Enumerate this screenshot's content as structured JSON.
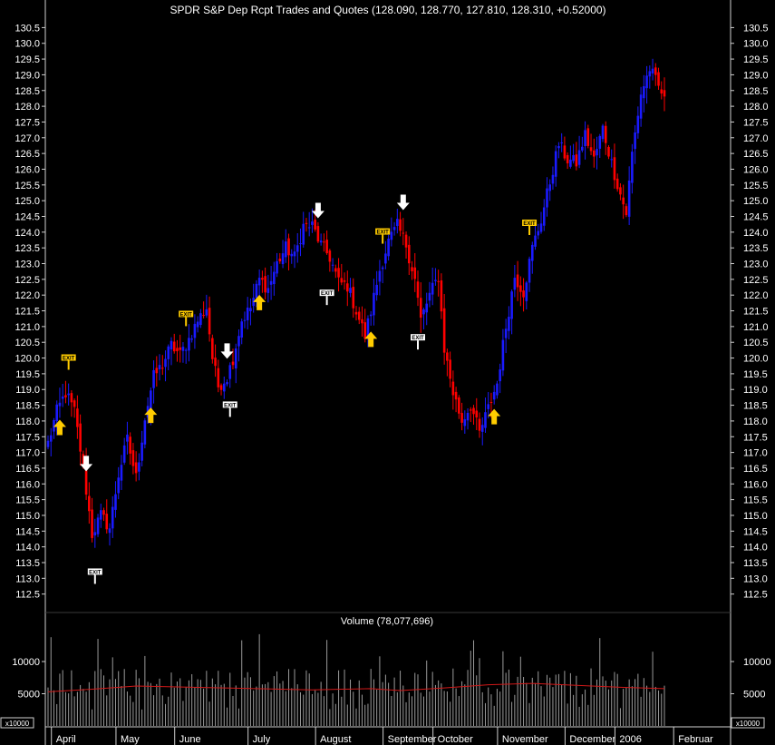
{
  "chart_data": {
    "type": "candlestick",
    "title": "SPDR  S&P Dep Rcpt Trades and Quotes (128.090, 128.770, 127.810, 128.310, +0.52000)",
    "price_axis": {
      "ylim": [
        112.0,
        130.8
      ],
      "ticks": [
        "130.5",
        "130.0",
        "129.5",
        "129.0",
        "128.5",
        "128.0",
        "127.5",
        "127.0",
        "126.5",
        "126.0",
        "125.5",
        "125.0",
        "124.5",
        "124.0",
        "123.5",
        "123.0",
        "122.5",
        "122.0",
        "121.5",
        "121.0",
        "120.5",
        "120.0",
        "119.5",
        "119.0",
        "118.5",
        "118.0",
        "117.5",
        "117.0",
        "116.5",
        "116.0",
        "115.5",
        "115.0",
        "114.5",
        "114.0",
        "113.5",
        "113.0",
        "112.5"
      ]
    },
    "time_axis": {
      "labels": [
        "April",
        "May",
        "June",
        "July",
        "August",
        "September",
        "October",
        "November",
        "December",
        "2006",
        "Februar"
      ],
      "label_day_index": [
        3,
        25,
        45,
        70,
        93,
        116,
        133,
        155,
        178,
        195,
        215
      ]
    },
    "colors": {
      "up": "#1a1aff",
      "down": "#ff0000",
      "volume_bar": "#9a9a9a",
      "volume_ma": "#d01818",
      "long_signal": "#ffcc00",
      "short_signal": "#ffffff",
      "grid": "#4a4a4a"
    },
    "close_anchors": [
      {
        "day": 0,
        "close": 117.3
      },
      {
        "day": 3,
        "close": 118.3
      },
      {
        "day": 6,
        "close": 118.9
      },
      {
        "day": 9,
        "close": 118.3
      },
      {
        "day": 12,
        "close": 116.5
      },
      {
        "day": 15,
        "close": 114.4
      },
      {
        "day": 18,
        "close": 115.0
      },
      {
        "day": 21,
        "close": 114.6
      },
      {
        "day": 24,
        "close": 116.3
      },
      {
        "day": 27,
        "close": 117.4
      },
      {
        "day": 30,
        "close": 116.2
      },
      {
        "day": 33,
        "close": 118.1
      },
      {
        "day": 36,
        "close": 119.4
      },
      {
        "day": 39,
        "close": 119.8
      },
      {
        "day": 42,
        "close": 120.4
      },
      {
        "day": 45,
        "close": 120.1
      },
      {
        "day": 48,
        "close": 120.6
      },
      {
        "day": 51,
        "close": 121.2
      },
      {
        "day": 54,
        "close": 121.6
      },
      {
        "day": 56,
        "close": 120.0
      },
      {
        "day": 58,
        "close": 119.1
      },
      {
        "day": 61,
        "close": 119.4
      },
      {
        "day": 63,
        "close": 120.0
      },
      {
        "day": 66,
        "close": 121.2
      },
      {
        "day": 69,
        "close": 121.6
      },
      {
        "day": 72,
        "close": 122.5
      },
      {
        "day": 75,
        "close": 122.2
      },
      {
        "day": 78,
        "close": 123.0
      },
      {
        "day": 81,
        "close": 123.5
      },
      {
        "day": 84,
        "close": 123.2
      },
      {
        "day": 87,
        "close": 124.2
      },
      {
        "day": 90,
        "close": 124.2
      },
      {
        "day": 93,
        "close": 123.6
      },
      {
        "day": 96,
        "close": 123.2
      },
      {
        "day": 99,
        "close": 122.4
      },
      {
        "day": 102,
        "close": 122.3
      },
      {
        "day": 105,
        "close": 121.5
      },
      {
        "day": 108,
        "close": 120.7
      },
      {
        "day": 110,
        "close": 121.5
      },
      {
        "day": 113,
        "close": 122.8
      },
      {
        "day": 116,
        "close": 123.7
      },
      {
        "day": 119,
        "close": 124.2
      },
      {
        "day": 122,
        "close": 123.6
      },
      {
        "day": 125,
        "close": 122.5
      },
      {
        "day": 127,
        "close": 121.2
      },
      {
        "day": 130,
        "close": 122.0
      },
      {
        "day": 133,
        "close": 122.6
      },
      {
        "day": 135,
        "close": 120.3
      },
      {
        "day": 138,
        "close": 118.9
      },
      {
        "day": 141,
        "close": 118.0
      },
      {
        "day": 144,
        "close": 118.5
      },
      {
        "day": 147,
        "close": 117.6
      },
      {
        "day": 150,
        "close": 118.4
      },
      {
        "day": 153,
        "close": 119.2
      },
      {
        "day": 156,
        "close": 121.0
      },
      {
        "day": 159,
        "close": 122.6
      },
      {
        "day": 162,
        "close": 122.1
      },
      {
        "day": 165,
        "close": 123.5
      },
      {
        "day": 168,
        "close": 124.4
      },
      {
        "day": 171,
        "close": 125.6
      },
      {
        "day": 174,
        "close": 126.8
      },
      {
        "day": 177,
        "close": 126.3
      },
      {
        "day": 180,
        "close": 126.2
      },
      {
        "day": 183,
        "close": 127.1
      },
      {
        "day": 186,
        "close": 126.3
      },
      {
        "day": 189,
        "close": 127.3
      },
      {
        "day": 192,
        "close": 126.2
      },
      {
        "day": 195,
        "close": 125.2
      },
      {
        "day": 197,
        "close": 124.6
      },
      {
        "day": 199,
        "close": 126.5
      },
      {
        "day": 202,
        "close": 128.4
      },
      {
        "day": 205,
        "close": 129.2
      },
      {
        "day": 208,
        "close": 128.6
      },
      {
        "day": 210,
        "close": 128.3
      }
    ],
    "signals": [
      {
        "day": 4,
        "kind": "long"
      },
      {
        "day": 7,
        "kind": "exit-long"
      },
      {
        "day": 13,
        "kind": "short"
      },
      {
        "day": 16,
        "kind": "exit-short"
      },
      {
        "day": 35,
        "kind": "long"
      },
      {
        "day": 47,
        "kind": "exit-long"
      },
      {
        "day": 61,
        "kind": "short"
      },
      {
        "day": 62,
        "kind": "exit-short"
      },
      {
        "day": 72,
        "kind": "long"
      },
      {
        "day": 92,
        "kind": "short"
      },
      {
        "day": 95,
        "kind": "exit-short"
      },
      {
        "day": 110,
        "kind": "long"
      },
      {
        "day": 114,
        "kind": "exit-long"
      },
      {
        "day": 121,
        "kind": "short"
      },
      {
        "day": 126,
        "kind": "exit-short"
      },
      {
        "day": 152,
        "kind": "long"
      },
      {
        "day": 164,
        "kind": "exit-long"
      }
    ],
    "exit_text": "EXIT",
    "volume": {
      "title": "Volume (78,077,696)",
      "ticks": [
        "10000",
        "5000"
      ],
      "multiplier": "x10000",
      "ylim": [
        0,
        15500
      ],
      "moving_average": [
        {
          "day": 0,
          "value": 5300
        },
        {
          "day": 15,
          "value": 5700
        },
        {
          "day": 30,
          "value": 6200
        },
        {
          "day": 60,
          "value": 5900
        },
        {
          "day": 90,
          "value": 5600
        },
        {
          "day": 110,
          "value": 5800
        },
        {
          "day": 120,
          "value": 5500
        },
        {
          "day": 135,
          "value": 5900
        },
        {
          "day": 150,
          "value": 6400
        },
        {
          "day": 165,
          "value": 6600
        },
        {
          "day": 180,
          "value": 6300
        },
        {
          "day": 195,
          "value": 6000
        },
        {
          "day": 210,
          "value": 5800
        }
      ]
    },
    "days": 211
  }
}
